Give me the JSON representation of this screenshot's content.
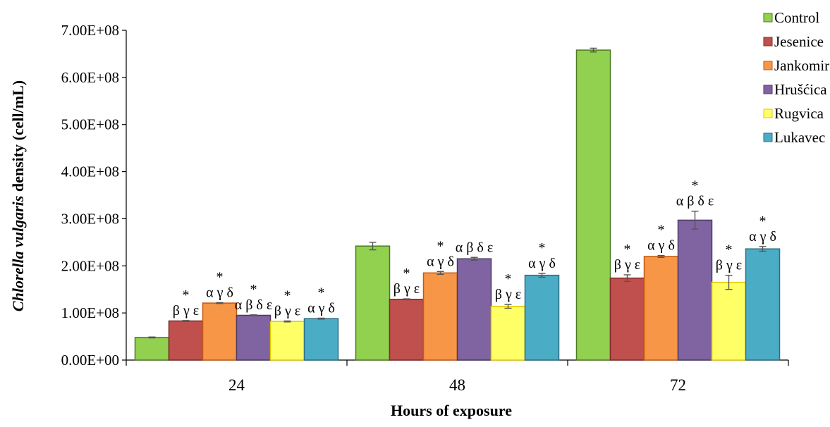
{
  "chart_data": {
    "type": "bar",
    "xlabel": "Hours of exposure",
    "ylabel": {
      "parts": [
        {
          "text": "Chlorella vulgaris",
          "italic": true
        },
        {
          "text": " density (cell/mL)",
          "italic": false
        }
      ]
    },
    "categories": [
      "24",
      "48",
      "72"
    ],
    "ylim": [
      0,
      700000000
    ],
    "yticks": [
      {
        "value": 0,
        "label": "0.00E+00"
      },
      {
        "value": 100000000,
        "label": "1.00E+08"
      },
      {
        "value": 200000000,
        "label": "2.00E+08"
      },
      {
        "value": 300000000,
        "label": "3.00E+08"
      },
      {
        "value": 400000000,
        "label": "4.00E+08"
      },
      {
        "value": 500000000,
        "label": "5.00E+08"
      },
      {
        "value": 600000000,
        "label": "6.00E+08"
      },
      {
        "value": 700000000,
        "label": "7.00E+08"
      }
    ],
    "grid": false,
    "legend_position": "top-right",
    "series": [
      {
        "name": "Control",
        "color": "#92D050",
        "stroke": "#4E7A23",
        "values": [
          48000000,
          242000000,
          658000000
        ],
        "errors": [
          1000000,
          8000000,
          4000000
        ],
        "annotations": [
          null,
          null,
          null
        ]
      },
      {
        "name": "Jesenice",
        "color": "#C0504D",
        "stroke": "#7F2B28",
        "values": [
          83000000,
          129000000,
          174000000
        ],
        "errors": [
          1000000,
          1000000,
          7000000
        ],
        "annotations": [
          [
            "*",
            "β γ ε"
          ],
          [
            "*",
            "β γ ε"
          ],
          [
            "*",
            "β γ ε"
          ]
        ]
      },
      {
        "name": "Jankomir",
        "color": "#F79646",
        "stroke": "#C55A11",
        "values": [
          121000000,
          185000000,
          220000000
        ],
        "errors": [
          1000000,
          3000000,
          2000000
        ],
        "annotations": [
          [
            "*",
            "α γ δ"
          ],
          [
            "*",
            "α γ δ"
          ],
          [
            "*",
            "α γ δ"
          ]
        ]
      },
      {
        "name": "Hrušćica",
        "color": "#8064A2",
        "stroke": "#4B3A62",
        "values": [
          95000000,
          215000000,
          297000000
        ],
        "errors": [
          1000000,
          3000000,
          19000000
        ],
        "annotations": [
          [
            "*",
            "α β δ ε"
          ],
          [
            "α β δ ε"
          ],
          [
            "*",
            "α β δ ε"
          ]
        ]
      },
      {
        "name": "Rugvica",
        "color": "#FFFF66",
        "stroke": "#E3C800",
        "values": [
          82000000,
          114000000,
          165000000
        ],
        "errors": [
          1000000,
          4000000,
          15000000
        ],
        "annotations": [
          [
            "*",
            "β γ ε"
          ],
          [
            "*",
            "β γ ε"
          ],
          [
            "*",
            "β γ ε"
          ]
        ]
      },
      {
        "name": "Lukavec",
        "color": "#4BACC6",
        "stroke": "#2E6F82",
        "values": [
          88000000,
          180000000,
          236000000
        ],
        "errors": [
          1000000,
          4000000,
          5000000
        ],
        "annotations": [
          [
            "*",
            "α γ δ"
          ],
          [
            "*",
            "α γ δ"
          ],
          [
            "*",
            "α γ δ"
          ]
        ]
      }
    ]
  }
}
